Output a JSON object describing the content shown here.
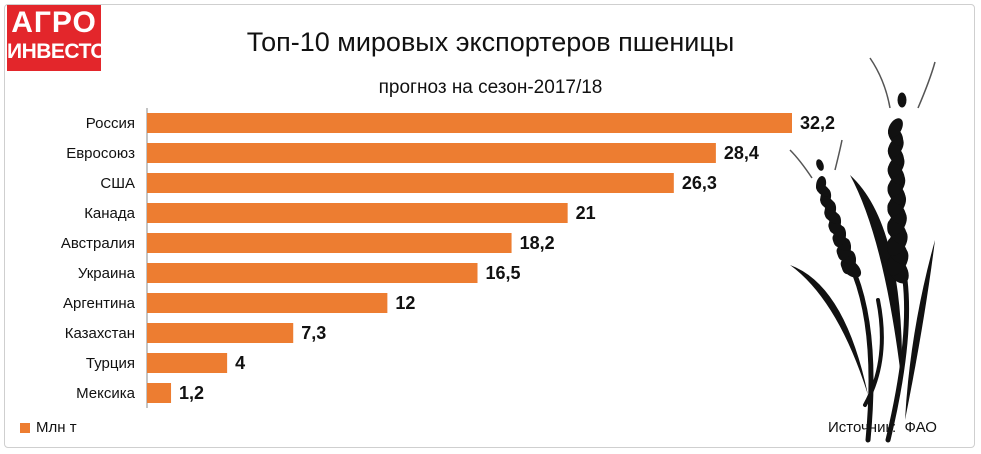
{
  "brand": {
    "line1": "АГРО",
    "line2": "ИНВЕСТОР",
    "bg": "#e3262b"
  },
  "source": {
    "label": "Источник:",
    "value": "ФАО"
  },
  "chart_data": {
    "type": "bar",
    "orientation": "horizontal",
    "title": "Топ-10 мировых экспортеров пшеницы",
    "subtitle": "прогноз на сезон-2017/18",
    "categories": [
      "Россия",
      "Евросоюз",
      "США",
      "Канада",
      "Австралия",
      "Украина",
      "Аргентина",
      "Казахстан",
      "Турция",
      "Мексика"
    ],
    "series": [
      {
        "name": "Млн т",
        "color": "#ed7d31",
        "values": [
          32.2,
          28.4,
          26.3,
          21,
          18.2,
          16.5,
          12,
          7.3,
          4,
          1.2
        ],
        "labels": [
          "32,2",
          "28,4",
          "26,3",
          "21",
          "18,2",
          "16,5",
          "12",
          "7,3",
          "4",
          "1,2"
        ]
      }
    ],
    "xlim": [
      0,
      32.2
    ],
    "grid": false,
    "legend": "bottom-left",
    "decoration": "wheat-ears-icon"
  }
}
